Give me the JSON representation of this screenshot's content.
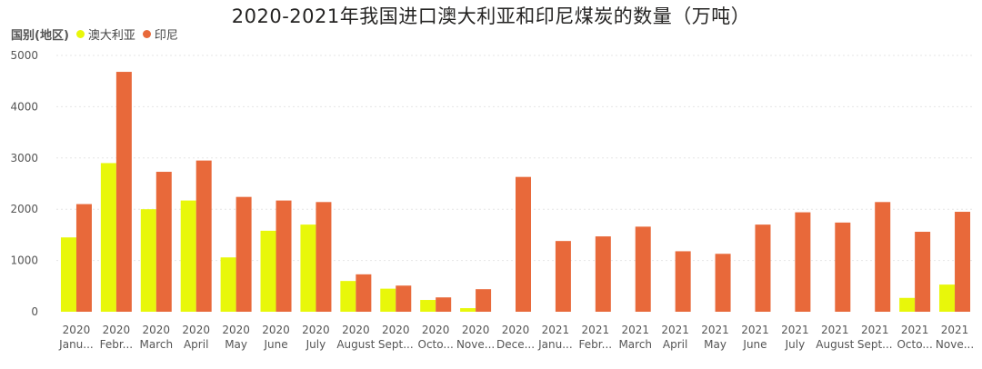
{
  "chart_data": {
    "type": "bar",
    "title": "2020-2021年我国进口澳大利亚和印尼煤炭的数量（万吨）",
    "legend_title": "国别(地区)",
    "legend_position": "top-left",
    "ylim": [
      0,
      5000
    ],
    "yticks": [
      "0",
      "1000",
      "2000",
      "3000",
      "4000",
      "5000"
    ],
    "grid": true,
    "categories": [
      {
        "year": "2020",
        "month": "Janu..."
      },
      {
        "year": "2020",
        "month": "Febr..."
      },
      {
        "year": "2020",
        "month": "March"
      },
      {
        "year": "2020",
        "month": "April"
      },
      {
        "year": "2020",
        "month": "May"
      },
      {
        "year": "2020",
        "month": "June"
      },
      {
        "year": "2020",
        "month": "July"
      },
      {
        "year": "2020",
        "month": "August"
      },
      {
        "year": "2020",
        "month": "Sept..."
      },
      {
        "year": "2020",
        "month": "Octo..."
      },
      {
        "year": "2020",
        "month": "Nove..."
      },
      {
        "year": "2020",
        "month": "Dece..."
      },
      {
        "year": "2021",
        "month": "Janu..."
      },
      {
        "year": "2021",
        "month": "Febr..."
      },
      {
        "year": "2021",
        "month": "March"
      },
      {
        "year": "2021",
        "month": "April"
      },
      {
        "year": "2021",
        "month": "May"
      },
      {
        "year": "2021",
        "month": "June"
      },
      {
        "year": "2021",
        "month": "July"
      },
      {
        "year": "2021",
        "month": "August"
      },
      {
        "year": "2021",
        "month": "Sept..."
      },
      {
        "year": "2021",
        "month": "Octo..."
      },
      {
        "year": "2021",
        "month": "Nove..."
      }
    ],
    "series": [
      {
        "name": "澳大利亚",
        "color": "#E8F70A",
        "values": [
          1450,
          2900,
          2000,
          2170,
          1060,
          1580,
          1700,
          600,
          450,
          230,
          70,
          0,
          0,
          0,
          0,
          0,
          0,
          0,
          0,
          0,
          0,
          270,
          530
        ]
      },
      {
        "name": "印尼",
        "color": "#E8693A",
        "values": [
          2100,
          4680,
          2730,
          2950,
          2240,
          2170,
          2140,
          730,
          510,
          280,
          440,
          2630,
          1380,
          1470,
          1660,
          1180,
          1130,
          1700,
          1940,
          1740,
          2140,
          1560,
          1950
        ]
      }
    ]
  }
}
